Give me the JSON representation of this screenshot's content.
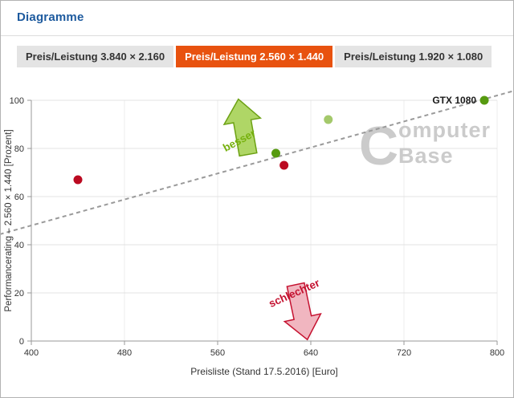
{
  "header": {
    "title": "Diagramme"
  },
  "tabs": [
    {
      "label": "Preis/Leistung 3.840 × 2.160",
      "active": false
    },
    {
      "label": "Preis/Leistung 2.560 × 1.440",
      "active": true
    },
    {
      "label": "Preis/Leistung 1.920 × 1.080",
      "active": false
    }
  ],
  "colors": {
    "accent_orange": "#e8520f",
    "heading_blue": "#1d5a9e",
    "tab_bg": "#e4e4e4",
    "tab_text": "#333333",
    "grid": "#e3e3e3",
    "grid_vertical": "#ececec",
    "axis": "#999999",
    "tick_text": "#333333",
    "trend": "#9a9a9a",
    "watermark": "#cbcbcb",
    "red": "#bb0a21",
    "green": "#569a10",
    "light_green": "#a4c96b",
    "point_label": "#1a1a1a"
  },
  "chart_data": {
    "type": "scatter",
    "title": "",
    "xlabel": "Preisliste (Stand 17.5.2016) [Euro]",
    "ylabel": "Performancerating – 2.560 × 1.440 [Prozent]",
    "xlim": [
      400,
      800
    ],
    "ylim": [
      0,
      100
    ],
    "x_ticks": [
      400,
      480,
      560,
      640,
      720,
      800
    ],
    "y_ticks": [
      0,
      20,
      40,
      60,
      80,
      100
    ],
    "grid": true,
    "watermark": "ComputerBase",
    "points": [
      {
        "x": 440,
        "y": 67,
        "color": "red",
        "label": ""
      },
      {
        "x": 610,
        "y": 78,
        "color": "green",
        "label": ""
      },
      {
        "x": 617,
        "y": 73,
        "color": "red",
        "label": ""
      },
      {
        "x": 655,
        "y": 92,
        "color": "light_green",
        "label": ""
      },
      {
        "x": 789,
        "y": 100,
        "color": "green",
        "label": "GTX 1080"
      }
    ],
    "trend_line": {
      "x1": 400,
      "y1": 48,
      "x2": 800,
      "y2": 102,
      "style": "dashed",
      "extend": true
    },
    "annotations": [
      {
        "text": "besser",
        "direction": "up",
        "fill": "#a6d155",
        "stroke": "#6ca113",
        "text_color": "#76b10e",
        "arrow_x": 582,
        "arrow_y": 89,
        "arrow_rotation": -10,
        "label_x": 580,
        "label_y": 82,
        "label_rotation": -28
      },
      {
        "text": "schlechter",
        "direction": "down",
        "fill": "#f0aeb9",
        "stroke": "#c51230",
        "text_color": "#c41230",
        "arrow_x": 632,
        "arrow_y": 12,
        "arrow_rotation": -12,
        "label_x": 627,
        "label_y": 18.5,
        "label_rotation": -24
      }
    ]
  }
}
